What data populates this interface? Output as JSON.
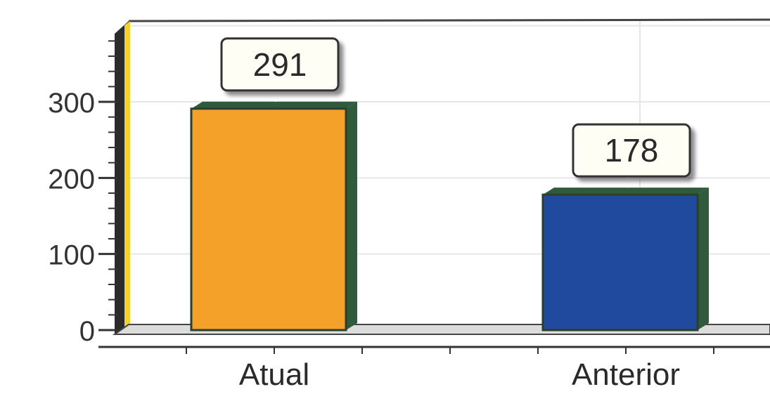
{
  "chart_data": {
    "type": "bar",
    "categories": [
      "Atual",
      "Anterior"
    ],
    "values": [
      291,
      178
    ],
    "data_labels": [
      "291",
      "178"
    ],
    "y_ticks": [
      0,
      100,
      200,
      300
    ],
    "y_tick_labels": [
      "0",
      "100",
      "200",
      "300"
    ],
    "ylim": [
      0,
      380
    ],
    "title": "",
    "xlabel": "",
    "ylabel": "",
    "grid": true,
    "bar_colors": [
      "#F4A12A",
      "#1F4A9E"
    ],
    "bar_side_color": "#2F5A3C",
    "wall_edge_color": "#F1D22E",
    "axis_color": "#333333",
    "grid_color": "#E6E6E6",
    "label_box_color": "#FFFEF5"
  }
}
